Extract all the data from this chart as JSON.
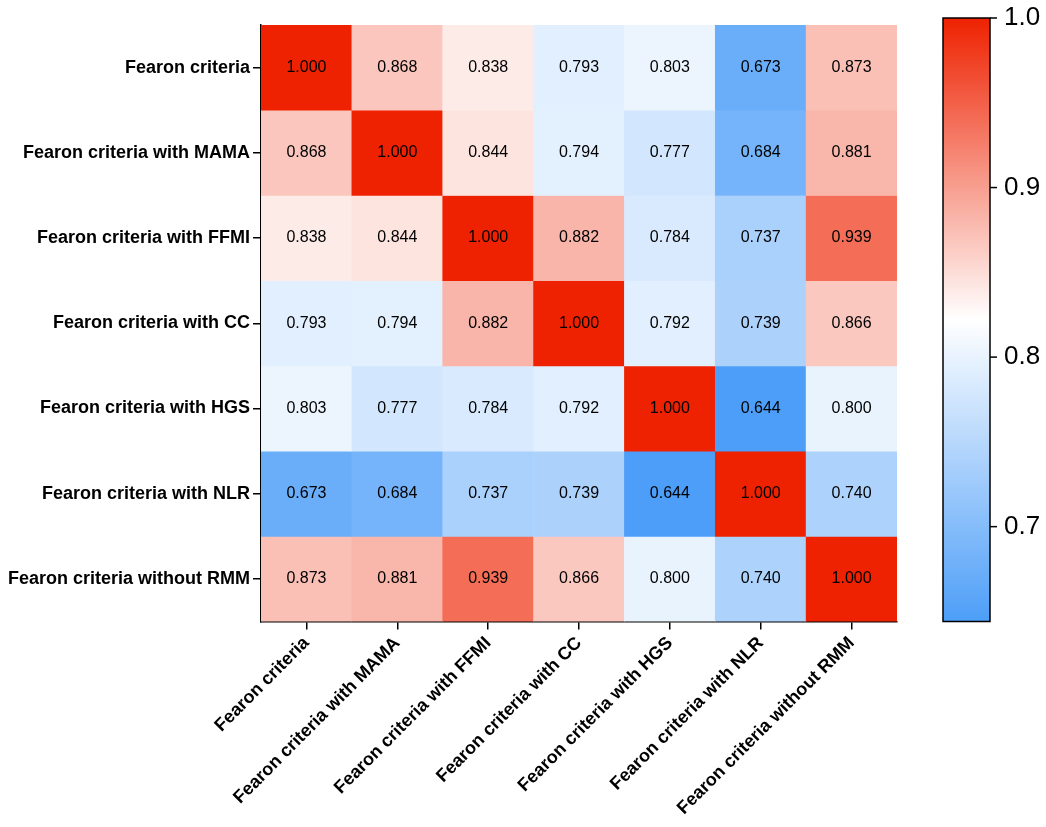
{
  "chart_data": {
    "type": "heatmap",
    "categories": [
      "Fearon criteria",
      "Fearon criteria with MAMA",
      "Fearon criteria with FFMI",
      "Fearon criteria with CC",
      "Fearon criteria with HGS",
      "Fearon criteria with NLR",
      "Fearon criteria without RMM"
    ],
    "y_categories": [
      "Fearon criteria",
      "Fearon criteria with MAMA",
      "Fearon criteria with FFMI",
      "Fearon criteria with CC",
      "Fearon criteria with HGS",
      "Fearon criteria with NLR",
      "Fearon criteria without RMM"
    ],
    "cells": [
      [
        1,
        0.868,
        0.838,
        0.793,
        0.803,
        0.673,
        0.873
      ],
      [
        0.868,
        1,
        0.844,
        0.794,
        0.777,
        0.684,
        0.881
      ],
      [
        0.838,
        0.844,
        1,
        0.882,
        0.784,
        0.737,
        0.939
      ],
      [
        0.793,
        0.794,
        0.882,
        1,
        0.792,
        0.739,
        0.866
      ],
      [
        0.803,
        0.777,
        0.784,
        0.792,
        1,
        0.644,
        0.8
      ],
      [
        0.673,
        0.684,
        0.737,
        0.739,
        0.644,
        1,
        0.74
      ],
      [
        0.873,
        0.881,
        0.939,
        0.866,
        0.8,
        0.74,
        1
      ]
    ],
    "cell_labels": [
      [
        "1.000",
        "0.868",
        "0.838",
        "0.793",
        "0.803",
        "0.673",
        "0.873"
      ],
      [
        "0.868",
        "1.000",
        "0.844",
        "0.794",
        "0.777",
        "0.684",
        "0.881"
      ],
      [
        "0.838",
        "0.844",
        "1.000",
        "0.882",
        "0.784",
        "0.737",
        "0.939"
      ],
      [
        "0.793",
        "0.794",
        "0.882",
        "1.000",
        "0.792",
        "0.739",
        "0.866"
      ],
      [
        "0.803",
        "0.777",
        "0.784",
        "0.792",
        "1.000",
        "0.644",
        "0.800"
      ],
      [
        "0.673",
        "0.684",
        "0.737",
        "0.739",
        "0.644",
        "1.000",
        "0.740"
      ],
      [
        "0.873",
        "0.881",
        "0.939",
        "0.866",
        "0.800",
        "0.740",
        "1.000"
      ]
    ],
    "clim": [
      0.644,
      1.0
    ],
    "cticks": [
      {
        "value": 0.7,
        "label": "0.7"
      },
      {
        "value": 0.8,
        "label": "0.8"
      },
      {
        "value": 0.9,
        "label": "0.9"
      },
      {
        "value": 1.0,
        "label": "1.0"
      }
    ]
  }
}
